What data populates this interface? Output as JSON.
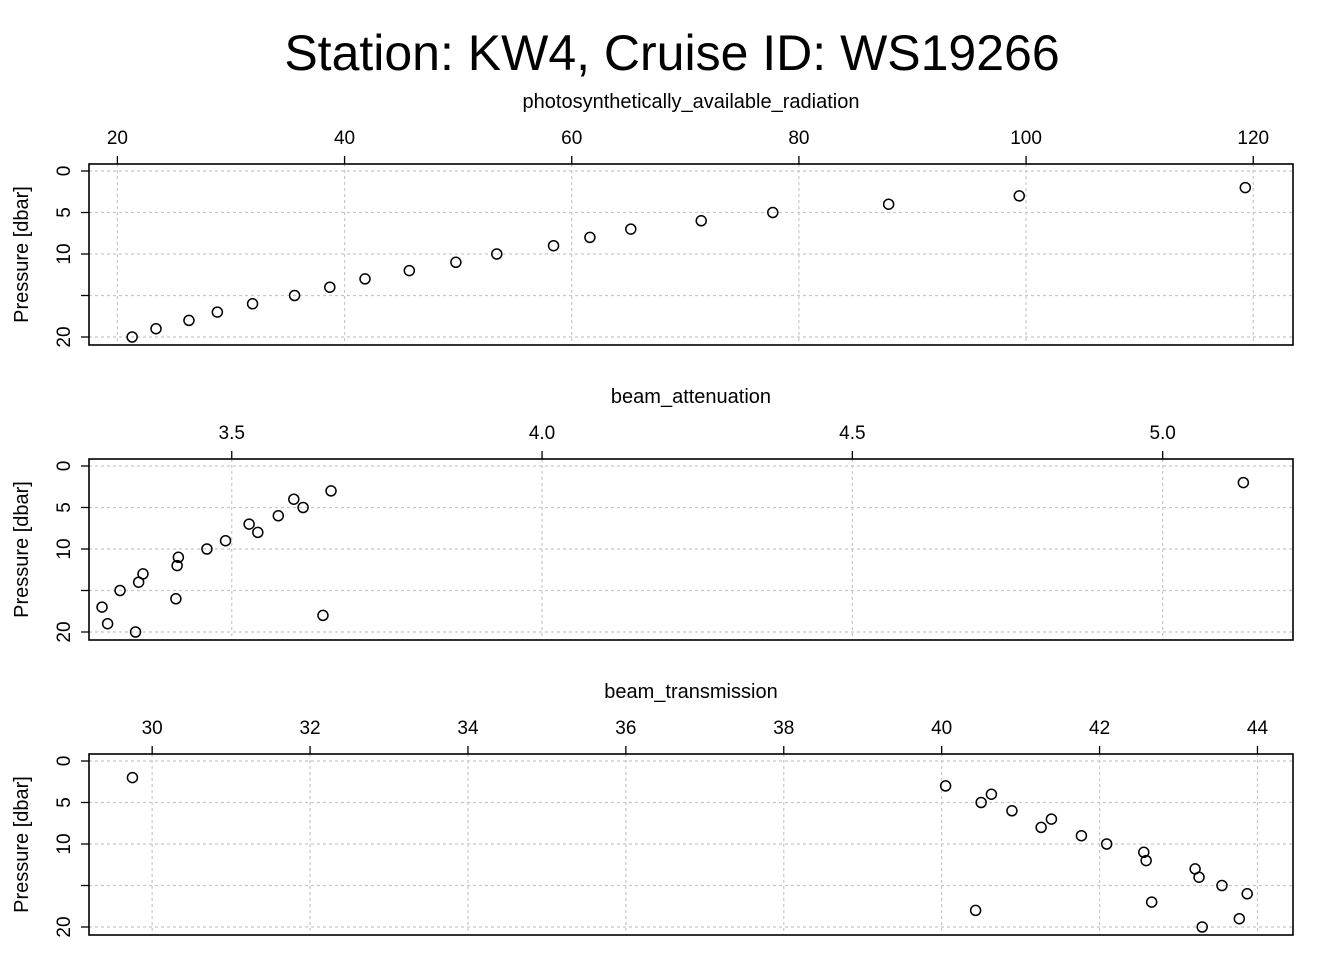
{
  "figure": {
    "title": "Station: KW4, Cruise ID: WS19266"
  },
  "chart_data": [
    {
      "type": "scatter",
      "title": "photosynthetically_available_radiation",
      "xlabel": "photosynthetically_available_radiation",
      "ylabel": "Pressure [dbar]",
      "xlim": [
        17.5,
        123.5
      ],
      "ylim": [
        21,
        -0.6
      ],
      "y_reversed": true,
      "x_axis_position": "top",
      "grid": true,
      "x_ticks": [
        20,
        40,
        60,
        80,
        100,
        120
      ],
      "y_ticks": [
        0,
        5,
        10,
        15,
        20
      ],
      "y_tick_labels": [
        "0",
        "5",
        "10",
        "",
        "20"
      ],
      "marker": "open-circle",
      "points": [
        {
          "x": 119.3,
          "y": 2
        },
        {
          "x": 99.4,
          "y": 3
        },
        {
          "x": 87.9,
          "y": 4
        },
        {
          "x": 77.7,
          "y": 5
        },
        {
          "x": 71.4,
          "y": 6
        },
        {
          "x": 65.2,
          "y": 7
        },
        {
          "x": 61.6,
          "y": 8
        },
        {
          "x": 58.4,
          "y": 9
        },
        {
          "x": 53.4,
          "y": 10
        },
        {
          "x": 49.8,
          "y": 11
        },
        {
          "x": 45.7,
          "y": 12
        },
        {
          "x": 41.8,
          "y": 13
        },
        {
          "x": 38.7,
          "y": 14
        },
        {
          "x": 35.6,
          "y": 15
        },
        {
          "x": 31.9,
          "y": 16
        },
        {
          "x": 28.8,
          "y": 17
        },
        {
          "x": 26.3,
          "y": 18
        },
        {
          "x": 23.4,
          "y": 19
        },
        {
          "x": 21.3,
          "y": 20
        }
      ]
    },
    {
      "type": "scatter",
      "title": "beam_attenuation",
      "xlabel": "beam_attenuation",
      "ylabel": "Pressure [dbar]",
      "xlim": [
        3.27,
        5.21
      ],
      "ylim": [
        21,
        -0.6
      ],
      "y_reversed": true,
      "x_axis_position": "top",
      "grid": true,
      "x_ticks": [
        3.5,
        4.0,
        4.5,
        5.0
      ],
      "x_tick_labels": [
        "3.5",
        "4.0",
        "4.5",
        "5.0"
      ],
      "y_ticks": [
        0,
        5,
        10,
        15,
        20
      ],
      "y_tick_labels": [
        "0",
        "5",
        "10",
        "",
        "20"
      ],
      "marker": "open-circle",
      "points": [
        {
          "x": 5.13,
          "y": 2
        },
        {
          "x": 3.66,
          "y": 3
        },
        {
          "x": 3.6,
          "y": 4
        },
        {
          "x": 3.615,
          "y": 5
        },
        {
          "x": 3.575,
          "y": 6
        },
        {
          "x": 3.528,
          "y": 7
        },
        {
          "x": 3.542,
          "y": 8
        },
        {
          "x": 3.49,
          "y": 9
        },
        {
          "x": 3.46,
          "y": 10
        },
        {
          "x": 3.414,
          "y": 11
        },
        {
          "x": 3.412,
          "y": 12
        },
        {
          "x": 3.357,
          "y": 13
        },
        {
          "x": 3.35,
          "y": 14
        },
        {
          "x": 3.32,
          "y": 15
        },
        {
          "x": 3.41,
          "y": 16
        },
        {
          "x": 3.291,
          "y": 17
        },
        {
          "x": 3.647,
          "y": 18
        },
        {
          "x": 3.3,
          "y": 19
        },
        {
          "x": 3.345,
          "y": 20
        }
      ]
    },
    {
      "type": "scatter",
      "title": "beam_transmission",
      "xlabel": "beam_transmission",
      "ylabel": "Pressure [dbar]",
      "xlim": [
        29.2,
        44.45
      ],
      "ylim": [
        21,
        -0.6
      ],
      "y_reversed": true,
      "x_axis_position": "top",
      "grid": true,
      "x_ticks": [
        30,
        32,
        34,
        36,
        38,
        40,
        42,
        44
      ],
      "y_ticks": [
        0,
        5,
        10,
        15,
        20
      ],
      "y_tick_labels": [
        "0",
        "5",
        "10",
        "",
        "20"
      ],
      "marker": "open-circle",
      "points": [
        {
          "x": 29.75,
          "y": 2
        },
        {
          "x": 40.05,
          "y": 3
        },
        {
          "x": 40.63,
          "y": 4
        },
        {
          "x": 40.5,
          "y": 5
        },
        {
          "x": 40.89,
          "y": 6
        },
        {
          "x": 41.39,
          "y": 7
        },
        {
          "x": 41.26,
          "y": 8
        },
        {
          "x": 41.77,
          "y": 9
        },
        {
          "x": 42.09,
          "y": 10
        },
        {
          "x": 42.56,
          "y": 11
        },
        {
          "x": 42.59,
          "y": 12
        },
        {
          "x": 43.21,
          "y": 13
        },
        {
          "x": 43.26,
          "y": 14
        },
        {
          "x": 43.55,
          "y": 15
        },
        {
          "x": 43.87,
          "y": 16
        },
        {
          "x": 42.66,
          "y": 17
        },
        {
          "x": 40.43,
          "y": 18
        },
        {
          "x": 43.77,
          "y": 19
        },
        {
          "x": 43.3,
          "y": 20
        }
      ]
    }
  ]
}
